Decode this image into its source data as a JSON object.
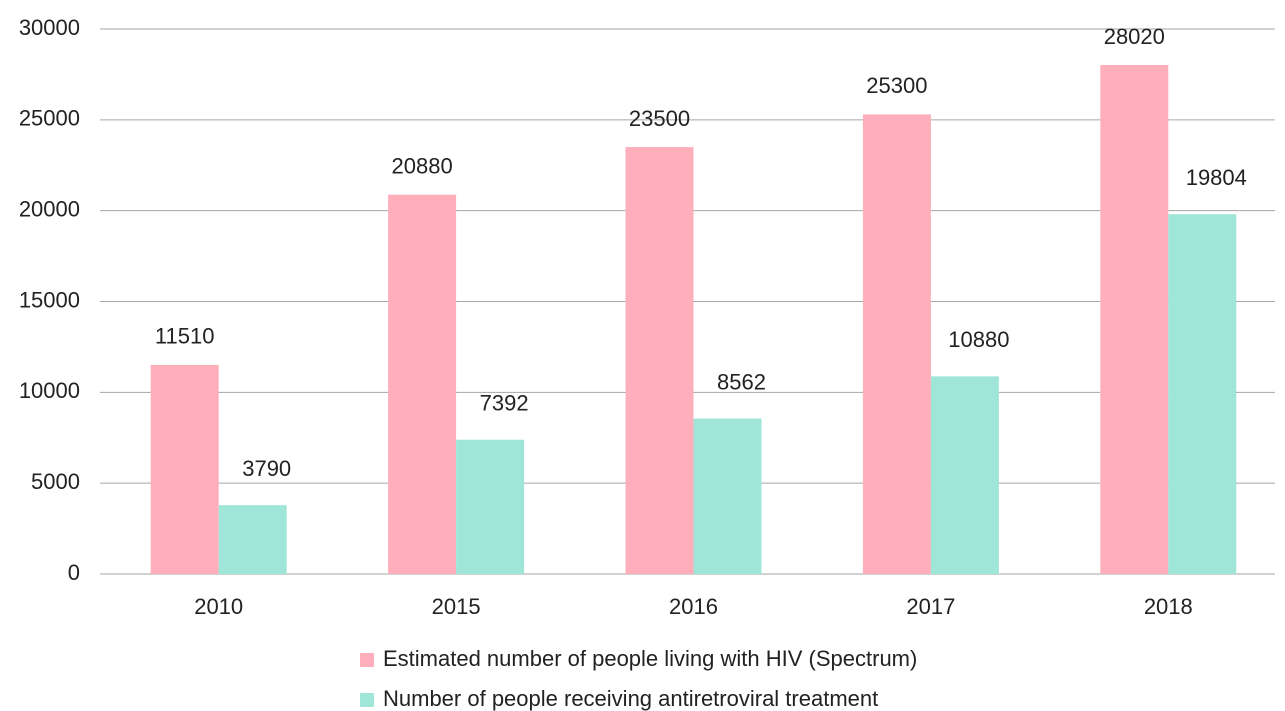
{
  "chart_data": {
    "type": "bar",
    "categories": [
      "2010",
      "2015",
      "2016",
      "2017",
      "2018"
    ],
    "series": [
      {
        "name": "Estimated number of people living with HIV (Spectrum)",
        "color": "#ffafbc",
        "values": [
          11510,
          20880,
          23500,
          25300,
          28020
        ]
      },
      {
        "name": "Number of people receiving antiretroviral treatment",
        "color": "#a0e6d8",
        "values": [
          3790,
          7392,
          8562,
          10880,
          19804
        ]
      }
    ],
    "ylim": [
      0,
      30000
    ],
    "yticks": [
      0,
      5000,
      10000,
      15000,
      20000,
      25000,
      30000
    ],
    "grid": true,
    "legend": "bottom"
  }
}
